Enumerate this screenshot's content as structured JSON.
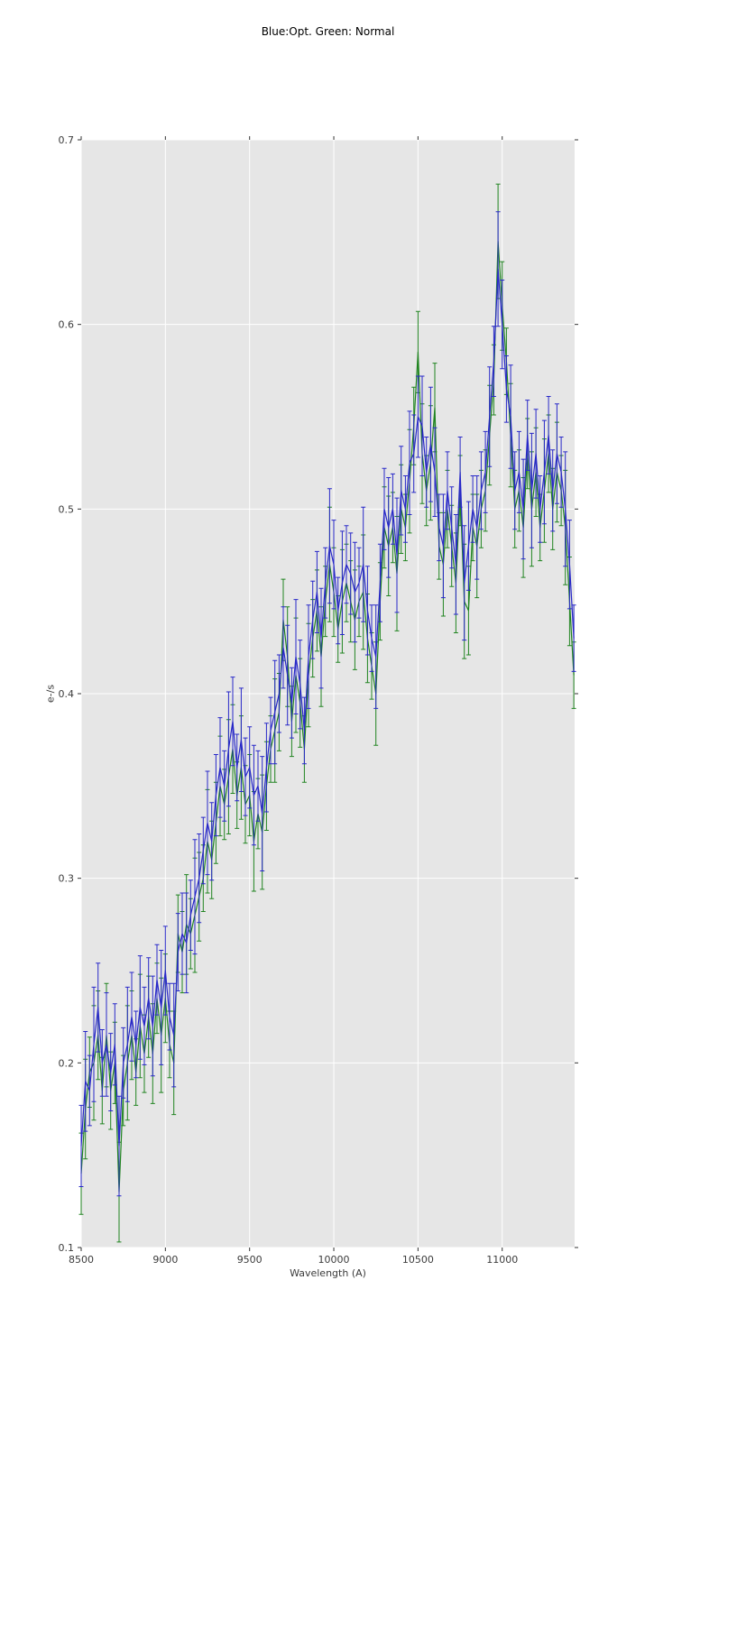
{
  "page": {
    "background": "#ffffff"
  },
  "chart_data": {
    "type": "line",
    "title": "Blue:Opt. Green: Normal",
    "xlabel": "Wavelength (A)",
    "ylabel": "e-/s",
    "xlim": [
      8500,
      11430
    ],
    "ylim": [
      0.1,
      0.7
    ],
    "xticks": [
      8500,
      9000,
      9500,
      10000,
      10500,
      11000
    ],
    "yticks": [
      0.1,
      0.2,
      0.3,
      0.4,
      0.5,
      0.6,
      0.7
    ],
    "grid": true,
    "legend_position": "none",
    "plot_bg": "#e6e6e6",
    "grid_color": "#ffffff",
    "tick_color": "#333333",
    "tick_label_color": "#3b3b3b",
    "x_start": 8500,
    "x_step": 25,
    "err_cycle": [
      0.022,
      0.027,
      0.019,
      0.031,
      0.024,
      0.018,
      0.028,
      0.021
    ],
    "series": [
      {
        "name": "Normal",
        "color": "#208420",
        "values": [
          0.14,
          0.175,
          0.195,
          0.2,
          0.215,
          0.185,
          0.215,
          0.185,
          0.2,
          0.13,
          0.185,
          0.2,
          0.215,
          0.195,
          0.22,
          0.205,
          0.225,
          0.205,
          0.235,
          0.215,
          0.235,
          0.21,
          0.2,
          0.27,
          0.26,
          0.275,
          0.27,
          0.28,
          0.29,
          0.3,
          0.32,
          0.31,
          0.33,
          0.35,
          0.34,
          0.355,
          0.37,
          0.345,
          0.36,
          0.34,
          0.345,
          0.32,
          0.335,
          0.325,
          0.35,
          0.37,
          0.38,
          0.39,
          0.44,
          0.42,
          0.385,
          0.41,
          0.395,
          0.37,
          0.41,
          0.43,
          0.445,
          0.42,
          0.45,
          0.47,
          0.455,
          0.435,
          0.45,
          0.46,
          0.45,
          0.44,
          0.45,
          0.455,
          0.43,
          0.415,
          0.4,
          0.45,
          0.49,
          0.48,
          0.49,
          0.465,
          0.5,
          0.49,
          0.515,
          0.545,
          0.585,
          0.53,
          0.51,
          0.525,
          0.555,
          0.48,
          0.47,
          0.5,
          0.48,
          0.46,
          0.51,
          0.45,
          0.445,
          0.49,
          0.48,
          0.5,
          0.51,
          0.54,
          0.57,
          0.645,
          0.61,
          0.58,
          0.54,
          0.5,
          0.51,
          0.49,
          0.53,
          0.5,
          0.52,
          0.49,
          0.51,
          0.53,
          0.5,
          0.52,
          0.51,
          0.49,
          0.45,
          0.41
        ]
      },
      {
        "name": "Opt.",
        "color": "#2828c8",
        "values": [
          0.155,
          0.19,
          0.185,
          0.21,
          0.23,
          0.2,
          0.21,
          0.195,
          0.21,
          0.155,
          0.2,
          0.21,
          0.225,
          0.21,
          0.23,
          0.22,
          0.235,
          0.22,
          0.245,
          0.23,
          0.25,
          0.225,
          0.215,
          0.26,
          0.27,
          0.265,
          0.28,
          0.29,
          0.3,
          0.315,
          0.33,
          0.32,
          0.345,
          0.36,
          0.35,
          0.37,
          0.385,
          0.36,
          0.375,
          0.355,
          0.36,
          0.345,
          0.35,
          0.335,
          0.36,
          0.38,
          0.39,
          0.4,
          0.425,
          0.41,
          0.395,
          0.42,
          0.405,
          0.38,
          0.42,
          0.44,
          0.455,
          0.43,
          0.46,
          0.48,
          0.47,
          0.445,
          0.46,
          0.47,
          0.465,
          0.455,
          0.46,
          0.47,
          0.445,
          0.43,
          0.42,
          0.46,
          0.5,
          0.49,
          0.5,
          0.475,
          0.51,
          0.5,
          0.525,
          0.53,
          0.55,
          0.545,
          0.52,
          0.535,
          0.52,
          0.49,
          0.48,
          0.51,
          0.49,
          0.47,
          0.52,
          0.46,
          0.48,
          0.5,
          0.49,
          0.51,
          0.52,
          0.55,
          0.58,
          0.63,
          0.6,
          0.565,
          0.55,
          0.51,
          0.52,
          0.5,
          0.54,
          0.51,
          0.53,
          0.5,
          0.52,
          0.54,
          0.51,
          0.53,
          0.52,
          0.5,
          0.47,
          0.43
        ]
      }
    ]
  }
}
